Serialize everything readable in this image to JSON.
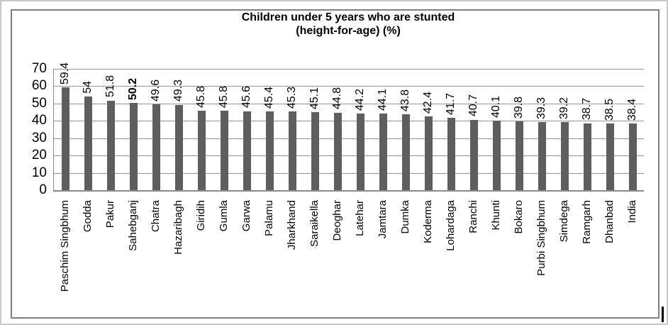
{
  "chart_data": {
    "type": "bar",
    "title": "Children under 5 years who are stunted",
    "subtitle": "(height-for-age) (%)",
    "categories": [
      "Paschim Singbhum",
      "Godda",
      "Pakur",
      "Sahebganj",
      "Chatra",
      "Hazaribagh",
      "Giridih",
      "Gumla",
      "Garwa",
      "Palamu",
      "Jharkhand",
      "Saraikella",
      "Deoghar",
      "Latehar",
      "Jamtara",
      "Dumka",
      "Koderma",
      "Lohardaga",
      "Ranchi",
      "Khunti",
      "Bokaro",
      "Purbi Singbhum",
      "Simdega",
      "Ramgarh",
      "Dhanbad",
      "India"
    ],
    "values": [
      59.4,
      54,
      51.8,
      50.2,
      49.6,
      49.3,
      45.8,
      45.8,
      45.6,
      45.4,
      45.3,
      45.1,
      44.8,
      44.2,
      44.1,
      43.8,
      42.4,
      41.7,
      40.7,
      40.1,
      39.8,
      39.3,
      39.2,
      38.7,
      38.5,
      38.4
    ],
    "emphasized_category": "Sahebganj",
    "xlabel": "",
    "ylabel": "",
    "ylim": [
      0,
      70
    ],
    "yticks": [
      70,
      60,
      50,
      40,
      30,
      20,
      10,
      0
    ],
    "grid": true,
    "legend": "none",
    "data_labels": "rotated-vertical",
    "bar_color": "#5e5e5e",
    "gridline_color": "#979797",
    "axis_color": "#8c8c8c"
  }
}
